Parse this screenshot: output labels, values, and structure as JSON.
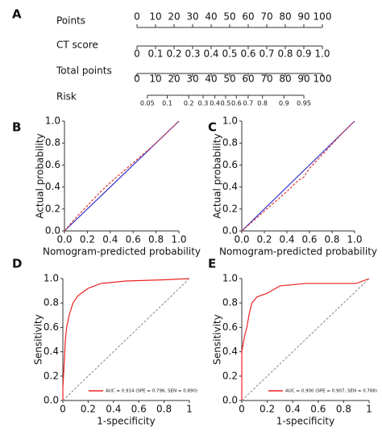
{
  "chart_data": [
    {
      "type": "nomogram",
      "panel_label": "A",
      "scales": [
        {
          "name": "Points",
          "lim": [
            0,
            100
          ],
          "ticks": [
            0,
            10,
            20,
            30,
            40,
            50,
            60,
            70,
            80,
            90,
            100
          ]
        },
        {
          "name": "CT score",
          "lim": [
            0,
            1
          ],
          "ticks": [
            0,
            0.1,
            0.2,
            0.3,
            0.4,
            0.5,
            0.6,
            0.7,
            0.8,
            0.9,
            {
              "value": 1,
              "label": "1.0"
            }
          ]
        },
        {
          "name": "Total points",
          "lim": [
            0,
            100
          ],
          "ticks": [
            0,
            10,
            20,
            30,
            40,
            50,
            60,
            70,
            80,
            90,
            100
          ]
        },
        {
          "name": "Risk",
          "lim": [
            0.05,
            0.95
          ],
          "log_odds": true,
          "ticks": [
            0.05,
            0.1,
            0.2,
            0.3,
            0.4,
            0.5,
            0.6,
            0.7,
            0.8,
            0.9,
            0.95
          ]
        }
      ]
    },
    {
      "type": "line",
      "panel_label": "B",
      "xlabel": "Nomogram-predicted probability",
      "ylabel": "Actual probability",
      "xlim": [
        0,
        1
      ],
      "ylim": [
        0,
        1
      ],
      "xticks": [
        {
          "value": 0,
          "label": "0.0"
        },
        0.2,
        0.4,
        0.6,
        0.8,
        {
          "value": 1,
          "label": "1.0"
        }
      ],
      "yticks": [
        {
          "value": 0,
          "label": "0.0"
        },
        0.2,
        0.4,
        0.6,
        0.8,
        {
          "value": 1,
          "label": "1.0"
        }
      ],
      "series": [
        {
          "color": "#3333cc",
          "x": [
            0,
            1
          ],
          "values": [
            0,
            1
          ]
        },
        {
          "color": "#dd3333",
          "dashed": true,
          "x": [
            0,
            0.1,
            0.2,
            0.3,
            0.4,
            0.5,
            0.6,
            0.7,
            0.8,
            0.9,
            1
          ],
          "values": [
            0,
            0.12,
            0.23,
            0.34,
            0.44,
            0.53,
            0.62,
            0.71,
            0.8,
            0.9,
            1
          ]
        }
      ]
    },
    {
      "type": "line",
      "panel_label": "C",
      "xlabel": "Nomogram-predicted probability",
      "ylabel": "Actual probability",
      "xlim": [
        0,
        1
      ],
      "ylim": [
        0,
        1
      ],
      "xticks": [
        {
          "value": 0,
          "label": "0.0"
        },
        0.2,
        0.4,
        0.6,
        0.8,
        {
          "value": 1,
          "label": "1.0"
        }
      ],
      "yticks": [
        {
          "value": 0,
          "label": "0.0"
        },
        0.2,
        0.4,
        0.6,
        0.8,
        {
          "value": 1,
          "label": "1.0"
        }
      ],
      "series": [
        {
          "color": "#3333cc",
          "x": [
            0,
            1
          ],
          "values": [
            0,
            1
          ]
        },
        {
          "color": "#dd3333",
          "dashed": true,
          "x": [
            0,
            0.1,
            0.2,
            0.3,
            0.4,
            0.5,
            0.55,
            0.6,
            0.7,
            0.8,
            0.9,
            1
          ],
          "values": [
            0,
            0.09,
            0.18,
            0.27,
            0.36,
            0.46,
            0.49,
            0.57,
            0.68,
            0.79,
            0.9,
            1
          ]
        }
      ]
    },
    {
      "type": "line",
      "panel_label": "D",
      "xlabel": "1-specificity",
      "ylabel": "Sensitivity",
      "xlim": [
        0,
        1
      ],
      "ylim": [
        0,
        1
      ],
      "xticks": [
        0,
        0.2,
        0.4,
        0.6,
        0.8,
        1
      ],
      "yticks": [
        {
          "value": 0,
          "label": "0.0"
        },
        0.2,
        0.4,
        0.6,
        0.8,
        {
          "value": 1,
          "label": "1.0"
        }
      ],
      "legend": "bottom-right",
      "series": [
        {
          "name": "AUC = 0.914 (SPE = 0.796, SEN = 0.890)",
          "color": "#ee2222",
          "x": [
            0,
            0,
            0.01,
            0.02,
            0.03,
            0.05,
            0.08,
            0.12,
            0.2,
            0.3,
            0.5,
            0.8,
            1
          ],
          "values": [
            0,
            0.1,
            0.3,
            0.5,
            0.6,
            0.7,
            0.8,
            0.86,
            0.92,
            0.96,
            0.98,
            0.99,
            1
          ]
        },
        {
          "color": "#999999",
          "dashed": true,
          "x": [
            0,
            1
          ],
          "values": [
            0,
            1
          ]
        }
      ]
    },
    {
      "type": "line",
      "panel_label": "E",
      "xlabel": "1-specificity",
      "ylabel": "Sensitivity",
      "xlim": [
        0,
        1
      ],
      "ylim": [
        0,
        1
      ],
      "xticks": [
        0,
        0.2,
        0.4,
        0.6,
        0.8,
        1
      ],
      "yticks": [
        {
          "value": 0,
          "label": "0.0"
        },
        0.2,
        0.4,
        0.6,
        0.8,
        {
          "value": 1,
          "label": "1.0"
        }
      ],
      "legend": "bottom-right",
      "series": [
        {
          "name": "AUC = 0.900 (SPE = 0.907, SEN = 0.788)",
          "color": "#ee2222",
          "x": [
            0,
            0,
            0.02,
            0.04,
            0.06,
            0.08,
            0.12,
            0.2,
            0.3,
            0.5,
            0.9,
            1
          ],
          "values": [
            0,
            0.4,
            0.52,
            0.6,
            0.72,
            0.8,
            0.85,
            0.88,
            0.94,
            0.96,
            0.96,
            1
          ]
        },
        {
          "color": "#999999",
          "dashed": true,
          "x": [
            0,
            1
          ],
          "values": [
            0,
            1
          ]
        }
      ]
    }
  ]
}
